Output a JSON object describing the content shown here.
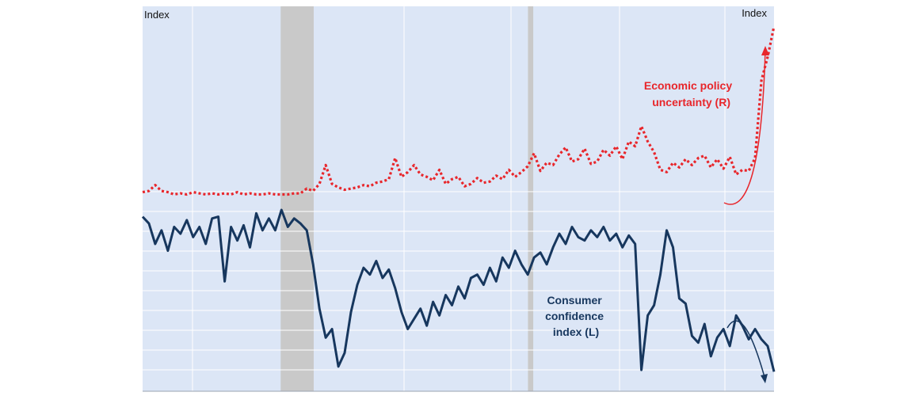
{
  "chart_data": {
    "type": "line",
    "left_axis_label": "Index",
    "right_axis_label": "Index",
    "x": [
      0,
      3,
      6,
      9,
      12,
      15,
      18,
      21,
      24,
      27,
      30,
      33,
      36,
      39,
      42,
      45,
      48,
      51,
      54,
      57,
      60,
      63,
      66,
      69,
      72,
      75,
      78,
      81,
      84,
      87,
      90,
      93,
      96,
      99,
      102,
      105,
      108,
      111,
      114,
      117,
      120,
      123,
      126,
      129,
      132,
      135,
      138,
      141,
      144,
      147,
      150,
      153,
      156,
      159,
      162,
      165,
      168,
      171,
      174,
      177,
      180,
      183,
      186,
      189,
      192,
      195,
      198,
      201,
      204,
      207,
      210,
      213,
      216,
      219,
      222,
      225,
      228,
      231,
      234,
      237,
      240,
      243,
      246,
      249,
      252,
      255,
      258,
      261,
      264,
      267,
      270,
      273,
      276,
      279,
      282,
      285,
      288,
      291,
      294,
      297,
      300
    ],
    "recession_bands": [
      [
        65.6,
        81.3
      ],
      [
        183.1,
        185.6
      ]
    ],
    "series": [
      {
        "name": "Consumer confidence index (L)",
        "axis": "left",
        "color": "#17375e",
        "style": "solid",
        "values": [
          96,
          92,
          80,
          88,
          76,
          90,
          86,
          94,
          84,
          90,
          80,
          95,
          96,
          58,
          90,
          82,
          91,
          78,
          98,
          88,
          95,
          88,
          100,
          90,
          95,
          92,
          88,
          68,
          42,
          25,
          30,
          8,
          16,
          40,
          56,
          66,
          62,
          70,
          60,
          65,
          54,
          40,
          30,
          36,
          42,
          32,
          46,
          38,
          50,
          44,
          55,
          48,
          60,
          62,
          56,
          66,
          58,
          72,
          66,
          76,
          68,
          62,
          72,
          75,
          68,
          78,
          86,
          80,
          90,
          84,
          82,
          88,
          84,
          90,
          82,
          86,
          78,
          85,
          80,
          6,
          38,
          44,
          62,
          88,
          78,
          48,
          45,
          26,
          22,
          33,
          14,
          25,
          30,
          20,
          38,
          32,
          24,
          30,
          24,
          20,
          5
        ]
      },
      {
        "name": "Economic policy uncertainty (R)",
        "axis": "right",
        "color": "#e8262b",
        "style": "dotted",
        "values": [
          5,
          6,
          11,
          6,
          5,
          3,
          4,
          3,
          5,
          4,
          3,
          4,
          3,
          4,
          3,
          5,
          3,
          4,
          3,
          3,
          4,
          3,
          3,
          3,
          4,
          4,
          8,
          6,
          12,
          28,
          12,
          9,
          7,
          8,
          9,
          11,
          10,
          13,
          14,
          16,
          34,
          18,
          22,
          28,
          20,
          18,
          15,
          24,
          12,
          16,
          18,
          10,
          12,
          17,
          13,
          14,
          19,
          16,
          24,
          18,
          22,
          27,
          38,
          23,
          30,
          28,
          37,
          43,
          31,
          33,
          42,
          29,
          31,
          41,
          36,
          44,
          33,
          48,
          44,
          61,
          48,
          39,
          24,
          22,
          30,
          26,
          33,
          28,
          34,
          36,
          26,
          33,
          25,
          35,
          20,
          24,
          23,
          34,
          100,
          120,
          146
        ]
      }
    ],
    "annotations": [
      {
        "text": "Economic policy uncertainty (R)",
        "lines": [
          "Economic policy",
          "uncertainty (R)"
        ],
        "color": "#e8262b"
      },
      {
        "text": "Consumer confidence index (L)",
        "lines": [
          "Consumer",
          "confidence",
          "index (L)"
        ],
        "color": "#17375e"
      }
    ],
    "grid": true,
    "colors": {
      "plot_background": "#dce6f6",
      "recession_band": "#c9c9c9",
      "gridline": "#ffffff"
    }
  }
}
